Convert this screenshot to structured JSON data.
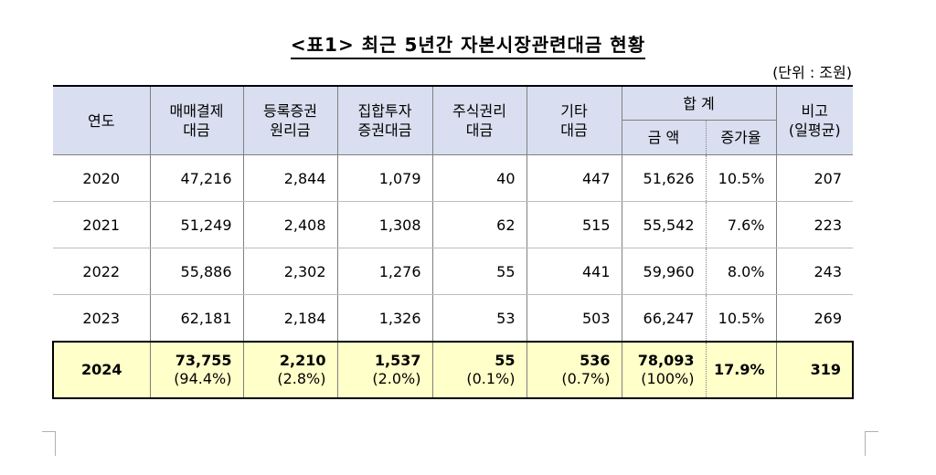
{
  "title": "<표1> 최근 5년간 자본시장관련대금 현황",
  "unit": "(단위 : 조원)",
  "headers": {
    "year": "연도",
    "col1": [
      "매매결제",
      "대금"
    ],
    "col2": [
      "등록증권",
      "원리금"
    ],
    "col3": [
      "집합투자",
      "증권대금"
    ],
    "col4": [
      "주식권리",
      "대금"
    ],
    "col5": [
      "기타",
      "대금"
    ],
    "total_group": "합  계",
    "total_amount": "금  액",
    "growth": "증가율",
    "note": [
      "비고",
      "(일평균)"
    ]
  },
  "rows": [
    {
      "year": "2020",
      "c1": "47,216",
      "c2": "2,844",
      "c3": "1,079",
      "c4": "40",
      "c5": "447",
      "total": "51,626",
      "growth": "10.5%",
      "note": "207"
    },
    {
      "year": "2021",
      "c1": "51,249",
      "c2": "2,408",
      "c3": "1,308",
      "c4": "62",
      "c5": "515",
      "total": "55,542",
      "growth": "7.6%",
      "note": "223"
    },
    {
      "year": "2022",
      "c1": "55,886",
      "c2": "2,302",
      "c3": "1,276",
      "c4": "55",
      "c5": "441",
      "total": "59,960",
      "growth": "8.0%",
      "note": "243"
    },
    {
      "year": "2023",
      "c1": "62,181",
      "c2": "2,184",
      "c3": "1,326",
      "c4": "53",
      "c5": "503",
      "total": "66,247",
      "growth": "10.5%",
      "note": "269"
    }
  ],
  "latest": {
    "year": "2024",
    "c1": "73,755",
    "c1_share": "(94.4%)",
    "c2": "2,210",
    "c2_share": "(2.8%)",
    "c3": "1,537",
    "c3_share": "(2.0%)",
    "c4": "55",
    "c4_share": "(0.1%)",
    "c5": "536",
    "c5_share": "(0.7%)",
    "total": "78,093",
    "total_share": "(100%)",
    "growth": "17.9%",
    "note": "319"
  },
  "colors": {
    "header_bg": "#d9dff0",
    "highlight_bg": "#ffffc9"
  }
}
